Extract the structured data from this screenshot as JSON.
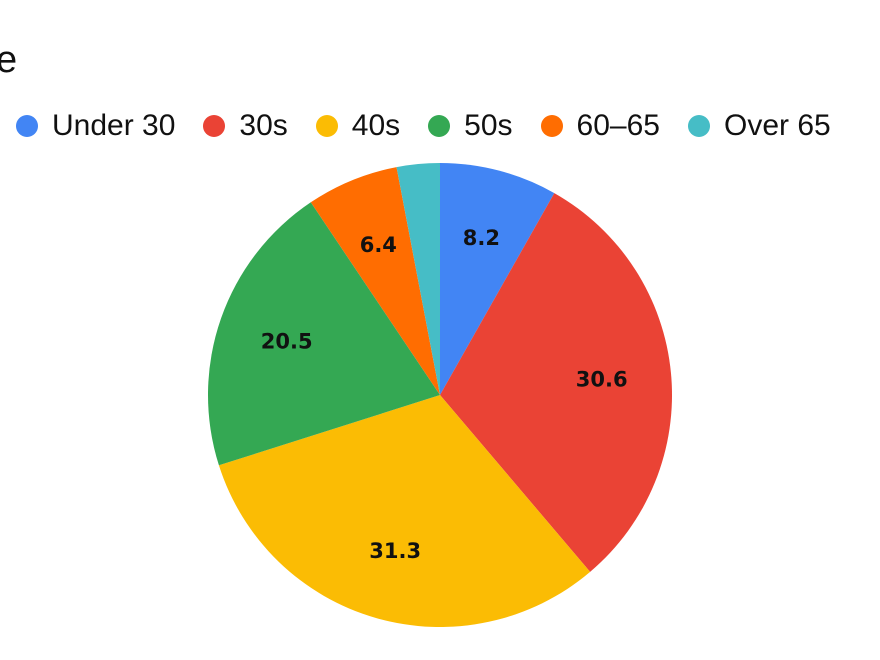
{
  "title_fragment": "e",
  "chart_data": {
    "type": "pie",
    "series": [
      {
        "name": "Under 30",
        "value": 8.2,
        "label": "8.2",
        "color": "#4285F4"
      },
      {
        "name": "30s",
        "value": 30.6,
        "label": "30.6",
        "color": "#EA4335"
      },
      {
        "name": "40s",
        "value": 31.3,
        "label": "31.3",
        "color": "#FBBC04"
      },
      {
        "name": "50s",
        "value": 20.5,
        "label": "20.5",
        "color": "#34A853"
      },
      {
        "name": "60–65",
        "value": 6.4,
        "label": "6.4",
        "color": "#FF6D01"
      },
      {
        "name": "Over 65",
        "value": 3.0,
        "label": "",
        "color": "#46BDC6"
      }
    ],
    "start_angle_deg": 0,
    "direction": "clockwise",
    "legend_position": "top"
  }
}
